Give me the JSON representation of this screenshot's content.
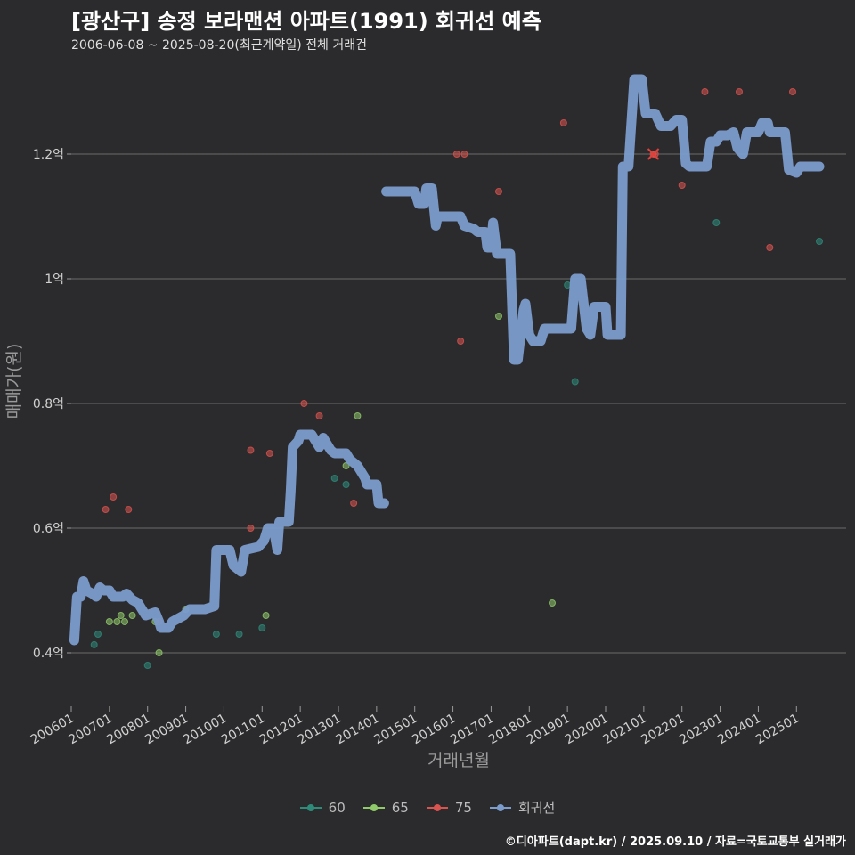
{
  "title": "[광산구] 송정 보라맨션 아파트(1991) 회귀선 예측",
  "subtitle": "2006-06-08 ~ 2025-08-20(최근계약일) 전체 거래건",
  "caption": "©디아파트(dapt.kr) / 2025.09.10 / 자료=국토교통부 실거래가",
  "colors": {
    "background": "#2b2b2d",
    "grid": "#6b6b6b",
    "s60": "#2e8b7a",
    "s65": "#90c96a",
    "s75": "#d9534f",
    "regression": "#7b9ccc"
  },
  "chart_data": {
    "type": "scatter",
    "title": "[광산구] 송정 보라맨션 아파트(1991) 회귀선 예측",
    "xlabel": "거래년월",
    "ylabel": "매매가(원)",
    "xlim": [
      2006.0,
      2026.3
    ],
    "ylim": [
      0.34,
      1.34
    ],
    "x_ticks": [
      2006,
      2007,
      2008,
      2009,
      2010,
      2011,
      2012,
      2013,
      2014,
      2015,
      2016,
      2017,
      2018,
      2019,
      2020,
      2021,
      2022,
      2023,
      2024,
      2025
    ],
    "x_tick_labels": [
      "200601",
      "200701",
      "200801",
      "200901",
      "201001",
      "201101",
      "201201",
      "201301",
      "201401",
      "201501",
      "201601",
      "201701",
      "201801",
      "201901",
      "202001",
      "202101",
      "202201",
      "202301",
      "202401",
      "202501"
    ],
    "y_ticks": [
      0.4,
      0.6,
      0.8,
      1.0,
      1.2
    ],
    "y_tick_labels": [
      "0.4억",
      "0.6억",
      "0.8억",
      "1억",
      "1.2억"
    ],
    "legend": [
      {
        "name": "60",
        "key": "s60"
      },
      {
        "name": "65",
        "key": "s65"
      },
      {
        "name": "75",
        "key": "s75"
      },
      {
        "name": "회귀선",
        "key": "regression"
      }
    ],
    "series": [
      {
        "name": "60",
        "key": "s60",
        "points": [
          [
            2006.6,
            0.413
          ],
          [
            2006.7,
            0.43
          ],
          [
            2008.0,
            0.38
          ],
          [
            2009.8,
            0.43
          ],
          [
            2010.4,
            0.43
          ],
          [
            2011.0,
            0.44
          ],
          [
            2012.9,
            0.68
          ],
          [
            2013.2,
            0.67
          ],
          [
            2019.2,
            0.835
          ],
          [
            2019.0,
            0.99
          ],
          [
            2022.9,
            1.09
          ],
          [
            2025.6,
            1.06
          ]
        ]
      },
      {
        "name": "65",
        "key": "s65",
        "points": [
          [
            2007.0,
            0.45
          ],
          [
            2007.2,
            0.45
          ],
          [
            2007.3,
            0.46
          ],
          [
            2007.4,
            0.45
          ],
          [
            2007.6,
            0.46
          ],
          [
            2008.2,
            0.45
          ],
          [
            2008.3,
            0.4
          ],
          [
            2009.0,
            0.47
          ],
          [
            2011.1,
            0.46
          ],
          [
            2013.2,
            0.7
          ],
          [
            2013.5,
            0.78
          ],
          [
            2017.2,
            0.94
          ],
          [
            2018.6,
            0.48
          ]
        ]
      },
      {
        "name": "75",
        "key": "s75",
        "points": [
          [
            2006.9,
            0.63
          ],
          [
            2007.1,
            0.65
          ],
          [
            2007.5,
            0.63
          ],
          [
            2008.3,
            0.45
          ],
          [
            2010.7,
            0.725
          ],
          [
            2010.7,
            0.6
          ],
          [
            2011.2,
            0.72
          ],
          [
            2012.1,
            0.8
          ],
          [
            2012.5,
            0.78
          ],
          [
            2013.4,
            0.64
          ],
          [
            2016.1,
            1.2
          ],
          [
            2016.3,
            1.2
          ],
          [
            2016.2,
            0.9
          ],
          [
            2017.2,
            1.14
          ],
          [
            2018.9,
            1.25
          ],
          [
            2021.3,
            1.2
          ],
          [
            2022.0,
            1.15
          ],
          [
            2022.6,
            1.3
          ],
          [
            2023.5,
            1.3
          ],
          [
            2024.3,
            1.05
          ],
          [
            2024.9,
            1.3
          ]
        ]
      }
    ],
    "regression": [
      [
        2006.08,
        0.42
      ],
      [
        2006.15,
        0.49
      ],
      [
        2006.25,
        0.49
      ],
      [
        2006.32,
        0.515
      ],
      [
        2006.4,
        0.5
      ],
      [
        2006.55,
        0.495
      ],
      [
        2006.65,
        0.49
      ],
      [
        2006.75,
        0.505
      ],
      [
        2006.85,
        0.5
      ],
      [
        2007.0,
        0.5
      ],
      [
        2007.1,
        0.49
      ],
      [
        2007.35,
        0.49
      ],
      [
        2007.45,
        0.495
      ],
      [
        2007.6,
        0.485
      ],
      [
        2007.75,
        0.48
      ],
      [
        2007.85,
        0.47
      ],
      [
        2007.95,
        0.46
      ],
      [
        2008.2,
        0.465
      ],
      [
        2008.3,
        0.45
      ],
      [
        2008.35,
        0.44
      ],
      [
        2008.55,
        0.44
      ],
      [
        2008.65,
        0.45
      ],
      [
        2008.8,
        0.455
      ],
      [
        2008.95,
        0.46
      ],
      [
        2009.1,
        0.47
      ],
      [
        2009.5,
        0.47
      ],
      [
        2009.75,
        0.475
      ],
      [
        2009.8,
        0.565
      ],
      [
        2010.15,
        0.565
      ],
      [
        2010.25,
        0.54
      ],
      [
        2010.45,
        0.53
      ],
      [
        2010.55,
        0.565
      ],
      [
        2010.9,
        0.57
      ],
      [
        2011.05,
        0.58
      ],
      [
        2011.15,
        0.6
      ],
      [
        2011.3,
        0.6
      ],
      [
        2011.4,
        0.565
      ],
      [
        2011.45,
        0.61
      ],
      [
        2011.7,
        0.61
      ],
      [
        2011.75,
        0.66
      ],
      [
        2011.8,
        0.73
      ],
      [
        2011.95,
        0.74
      ],
      [
        2012.0,
        0.75
      ],
      [
        2012.3,
        0.75
      ],
      [
        2012.4,
        0.74
      ],
      [
        2012.5,
        0.73
      ],
      [
        2012.6,
        0.745
      ],
      [
        2012.7,
        0.735
      ],
      [
        2012.8,
        0.725
      ],
      [
        2012.9,
        0.72
      ],
      [
        2013.2,
        0.72
      ],
      [
        2013.3,
        0.71
      ],
      [
        2013.5,
        0.7
      ],
      [
        2013.6,
        0.69
      ],
      [
        2013.7,
        0.68
      ],
      [
        2013.75,
        0.67
      ],
      [
        2014.0,
        0.67
      ],
      [
        2014.05,
        0.64
      ],
      [
        2014.2,
        0.64
      ],
      null,
      [
        2014.25,
        1.14
      ],
      [
        2015.0,
        1.14
      ],
      [
        2015.1,
        1.12
      ],
      [
        2015.25,
        1.12
      ],
      [
        2015.3,
        1.145
      ],
      [
        2015.45,
        1.145
      ],
      [
        2015.55,
        1.085
      ],
      [
        2015.6,
        1.1
      ],
      [
        2016.2,
        1.1
      ],
      [
        2016.3,
        1.085
      ],
      [
        2016.55,
        1.08
      ],
      [
        2016.65,
        1.075
      ],
      [
        2016.85,
        1.075
      ],
      [
        2016.9,
        1.05
      ],
      [
        2017.0,
        1.05
      ],
      [
        2017.05,
        1.09
      ],
      [
        2017.15,
        1.04
      ],
      [
        2017.5,
        1.04
      ],
      [
        2017.6,
        0.87
      ],
      [
        2017.7,
        0.87
      ],
      [
        2017.85,
        0.95
      ],
      [
        2017.9,
        0.96
      ],
      [
        2018.0,
        0.91
      ],
      [
        2018.1,
        0.9
      ],
      [
        2018.3,
        0.9
      ],
      [
        2018.4,
        0.92
      ],
      [
        2019.0,
        0.92
      ],
      [
        2019.1,
        0.92
      ],
      [
        2019.2,
        1.0
      ],
      [
        2019.35,
        1.0
      ],
      [
        2019.5,
        0.92
      ],
      [
        2019.6,
        0.91
      ],
      [
        2019.7,
        0.955
      ],
      [
        2020.0,
        0.955
      ],
      [
        2020.05,
        0.91
      ],
      [
        2020.4,
        0.91
      ],
      [
        2020.45,
        1.18
      ],
      [
        2020.6,
        1.18
      ],
      [
        2020.75,
        1.32
      ],
      [
        2020.95,
        1.32
      ],
      [
        2021.05,
        1.265
      ],
      [
        2021.3,
        1.265
      ],
      [
        2021.45,
        1.245
      ],
      [
        2021.7,
        1.245
      ],
      [
        2021.85,
        1.255
      ],
      [
        2022.0,
        1.255
      ],
      [
        2022.1,
        1.185
      ],
      [
        2022.2,
        1.18
      ],
      [
        2022.65,
        1.18
      ],
      [
        2022.75,
        1.22
      ],
      [
        2022.9,
        1.22
      ],
      [
        2023.0,
        1.23
      ],
      [
        2023.2,
        1.23
      ],
      [
        2023.35,
        1.235
      ],
      [
        2023.45,
        1.21
      ],
      [
        2023.6,
        1.2
      ],
      [
        2023.7,
        1.235
      ],
      [
        2024.0,
        1.235
      ],
      [
        2024.1,
        1.25
      ],
      [
        2024.25,
        1.25
      ],
      [
        2024.3,
        1.235
      ],
      [
        2024.7,
        1.235
      ],
      [
        2024.8,
        1.175
      ],
      [
        2025.0,
        1.17
      ],
      [
        2025.1,
        1.18
      ],
      [
        2025.6,
        1.18
      ]
    ],
    "marker": {
      "x": 2021.25,
      "y": 1.2,
      "label": "x"
    }
  }
}
